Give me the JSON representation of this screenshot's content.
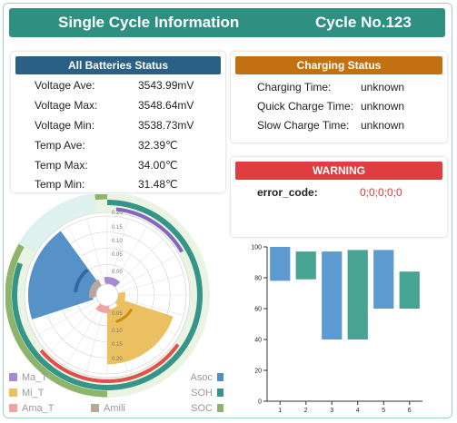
{
  "header": {
    "title": "Single Cycle Information",
    "cycle": "Cycle No.123"
  },
  "batteries": {
    "title": "All Batteries Status",
    "rows": [
      {
        "label": "Voltage Ave:",
        "value": "3543.99mV"
      },
      {
        "label": "Voltage Max:",
        "value": "3548.64mV"
      },
      {
        "label": "Voltage Min:",
        "value": "3538.73mV"
      },
      {
        "label": "Temp Ave:",
        "value": "32.39℃"
      },
      {
        "label": "Temp Max:",
        "value": "34.00℃"
      },
      {
        "label": "Temp Min:",
        "value": "31.48℃"
      }
    ]
  },
  "charging": {
    "title": "Charging Status",
    "rows": [
      {
        "label": "Charging Time:",
        "value": "unknown"
      },
      {
        "label": "Quick Charge Time:",
        "value": "unknown"
      },
      {
        "label": "Slow Charge Time:",
        "value": "unknown"
      }
    ]
  },
  "warning": {
    "title": "WARNING",
    "label": "error_code:",
    "value": "0;0;0;0;0"
  },
  "colors": {
    "header": "#2f8f80",
    "battery_head": "#2a5f86",
    "charging_head": "#c27012",
    "warning_head": "#df3d3f",
    "error_value": "#e53935"
  },
  "chart_data": [
    {
      "type": "radial_bar",
      "radial_ticks": [
        "0.20",
        "0.15",
        "0.10",
        "0.05",
        "0.00",
        "0.05",
        "0.10",
        "0.15",
        "0.20"
      ],
      "series": [
        {
          "name": "Ma_T",
          "color": "#a78bd0",
          "angle_deg": 18
        },
        {
          "name": "Mi_T",
          "color": "#eac060",
          "angle_deg": 108
        },
        {
          "name": "Ama_T",
          "color": "#f1a3a3",
          "angle_deg": 198
        },
        {
          "name": "Amili",
          "color": "#b8a79c",
          "angle_deg": 288
        },
        {
          "name": "Asoc",
          "color": "#4f8ec9"
        },
        {
          "name": "SOH",
          "color": "#359588"
        },
        {
          "name": "SOC",
          "color": "#8eb36b"
        }
      ],
      "sectors": [
        {
          "color": "#eac060",
          "r": 0.17,
          "from": 108,
          "to": 180
        },
        {
          "color": "#5692c8",
          "r": 0.2,
          "from": 252,
          "to": 324
        }
      ],
      "outer_rings": [
        {
          "name": "SOH",
          "color": "#359588",
          "from": 0,
          "to": 290
        },
        {
          "name": "SOC",
          "color": "#8eb36b",
          "from": 180,
          "to": 360
        }
      ]
    },
    {
      "type": "waterfall_bar",
      "categories": [
        "1",
        "2",
        "3",
        "4",
        "5",
        "6"
      ],
      "y_ticks": [
        "100",
        "80",
        "60",
        "40",
        "20",
        "0"
      ],
      "ylim": [
        0,
        100
      ],
      "bars": [
        {
          "from": 78,
          "to": 100,
          "color": "#5c9ad0"
        },
        {
          "from": 79,
          "to": 97,
          "color": "#47a392"
        },
        {
          "from": 40,
          "to": 97,
          "color": "#5c9ad0"
        },
        {
          "from": 40,
          "to": 98,
          "color": "#47a392"
        },
        {
          "from": 60,
          "to": 98,
          "color": "#5c9ad0"
        },
        {
          "from": 60,
          "to": 84,
          "color": "#47a392"
        }
      ]
    }
  ]
}
